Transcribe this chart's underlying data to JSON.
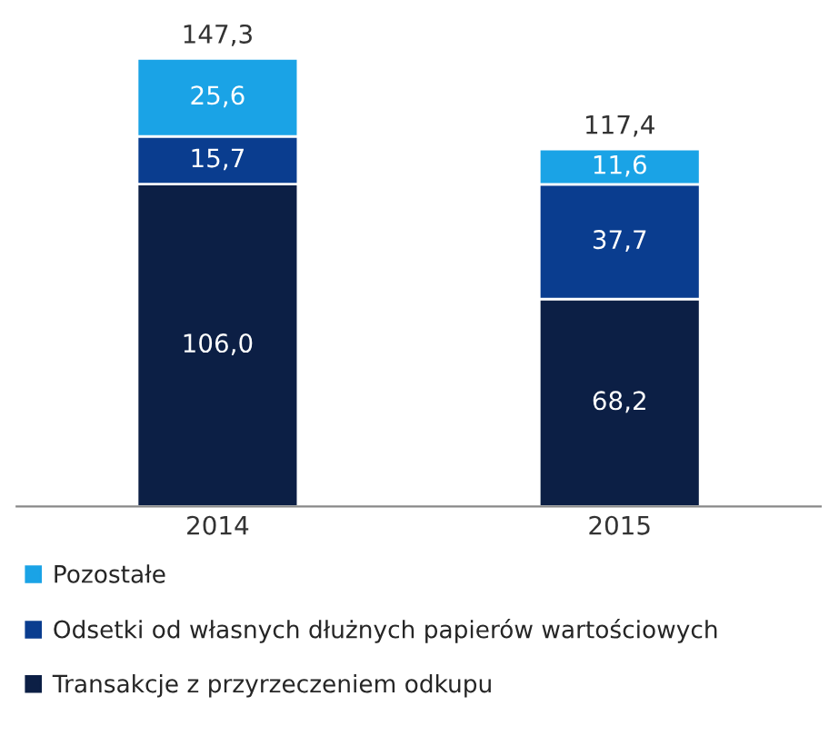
{
  "chart_data": {
    "type": "bar",
    "stacked": true,
    "categories": [
      "2014",
      "2015"
    ],
    "series": [
      {
        "name": "Transakcje z przyrzeczeniem odkupu",
        "color": "#0c1f45",
        "values": [
          106.0,
          68.2
        ],
        "value_labels": [
          "106,0",
          "68,2"
        ]
      },
      {
        "name": "Odsetki od własnych dłużnych papierów wartościowych",
        "color": "#0a3d8f",
        "values": [
          15.7,
          37.7
        ],
        "value_labels": [
          "15,7",
          "37,7"
        ]
      },
      {
        "name": "Pozostałe",
        "color": "#1aa3e6",
        "values": [
          25.6,
          11.6
        ],
        "value_labels": [
          "25,6",
          "11,6"
        ]
      }
    ],
    "totals": [
      "147,3",
      "117,4"
    ],
    "legend": "bottom",
    "grid": false
  }
}
